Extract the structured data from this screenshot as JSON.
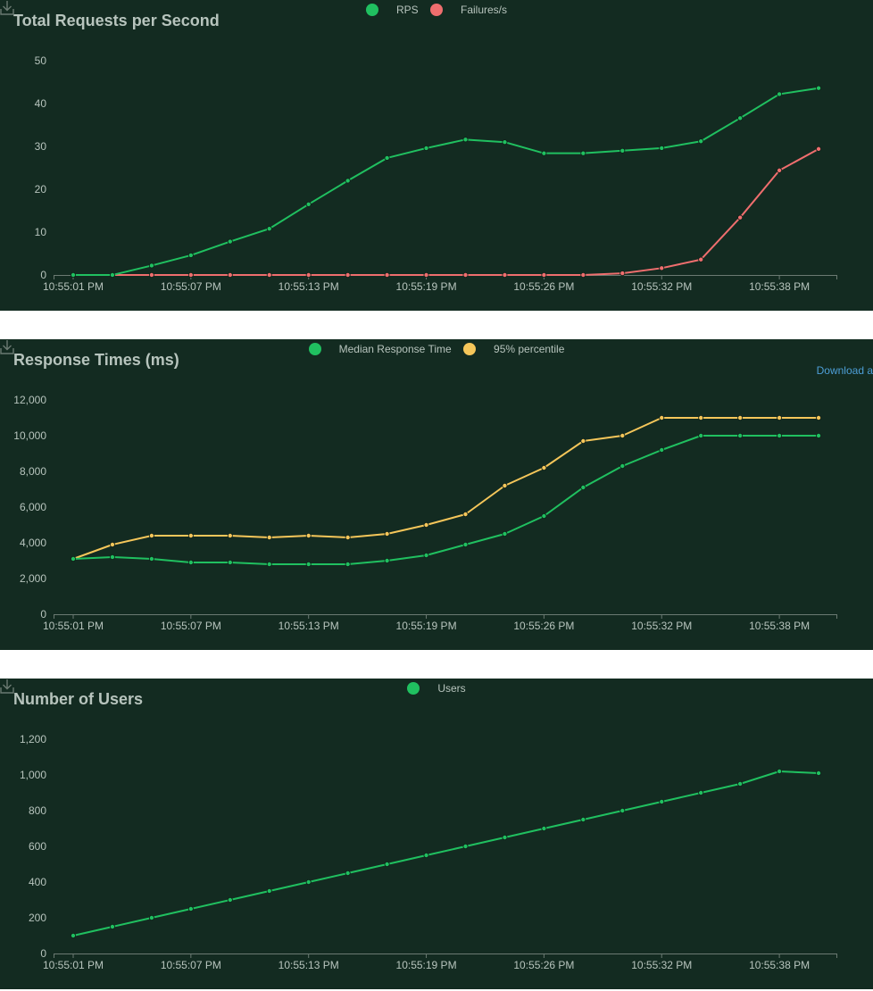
{
  "colors": {
    "background": "#132b21",
    "green": "#20c060",
    "red": "#ef6e6e",
    "yellow": "#f5c65a",
    "axis": "#6b7a72",
    "text": "#b7c4bd",
    "link": "#4d9ed7"
  },
  "chart_data": [
    {
      "type": "line",
      "title": "Total Requests per Second",
      "x": [
        "10:55:01 PM",
        "10:55:03 PM",
        "10:55:05 PM",
        "10:55:07 PM",
        "10:55:09 PM",
        "10:55:11 PM",
        "10:55:13 PM",
        "10:55:15 PM",
        "10:55:17 PM",
        "10:55:19 PM",
        "10:55:21 PM",
        "10:55:23 PM",
        "10:55:26 PM",
        "10:55:28 PM",
        "10:55:30 PM",
        "10:55:32 PM",
        "10:55:34 PM",
        "10:55:36 PM",
        "10:55:38 PM",
        "10:55:40 PM"
      ],
      "xtick_labels": [
        "10:55:01 PM",
        "10:55:07 PM",
        "10:55:13 PM",
        "10:55:19 PM",
        "10:55:26 PM",
        "10:55:32 PM",
        "10:55:38 PM"
      ],
      "ylim": [
        0,
        50
      ],
      "yticks": [
        0,
        10,
        20,
        30,
        40,
        50
      ],
      "ytick_labels": [
        "0",
        "10",
        "20",
        "30",
        "40",
        "50"
      ],
      "series": [
        {
          "name": "RPS",
          "color": "#20c060",
          "values": [
            0,
            0,
            2.2,
            4.6,
            7.8,
            10.8,
            16.5,
            22,
            27.3,
            29.6,
            31.6,
            31,
            28.4,
            28.4,
            29,
            29.6,
            31.2,
            36.6,
            42.2,
            43.6
          ]
        },
        {
          "name": "Failures/s",
          "color": "#ef6e6e",
          "values": [
            0,
            0,
            0,
            0,
            0,
            0,
            0,
            0,
            0,
            0,
            0,
            0,
            0,
            0,
            0.4,
            1.6,
            3.6,
            13.4,
            24.4,
            29.4
          ]
        }
      ]
    },
    {
      "type": "line",
      "title": "Response Times (ms)",
      "download_label": "Download a",
      "x": [
        "10:55:01 PM",
        "10:55:03 PM",
        "10:55:05 PM",
        "10:55:07 PM",
        "10:55:09 PM",
        "10:55:11 PM",
        "10:55:13 PM",
        "10:55:15 PM",
        "10:55:17 PM",
        "10:55:19 PM",
        "10:55:21 PM",
        "10:55:23 PM",
        "10:55:26 PM",
        "10:55:28 PM",
        "10:55:30 PM",
        "10:55:32 PM",
        "10:55:34 PM",
        "10:55:36 PM",
        "10:55:38 PM",
        "10:55:40 PM"
      ],
      "xtick_labels": [
        "10:55:01 PM",
        "10:55:07 PM",
        "10:55:13 PM",
        "10:55:19 PM",
        "10:55:26 PM",
        "10:55:32 PM",
        "10:55:38 PM"
      ],
      "ylim": [
        0,
        12000
      ],
      "yticks": [
        0,
        2000,
        4000,
        6000,
        8000,
        10000,
        12000
      ],
      "ytick_labels": [
        "0",
        "2,000",
        "4,000",
        "6,000",
        "8,000",
        "10,000",
        "12,000"
      ],
      "series": [
        {
          "name": "Median Response Time",
          "color": "#20c060",
          "values": [
            3100,
            3200,
            3100,
            2900,
            2900,
            2800,
            2800,
            2800,
            3000,
            3300,
            3900,
            4500,
            5500,
            7100,
            8300,
            9200,
            10000,
            10000,
            10000,
            10000
          ]
        },
        {
          "name": "95% percentile",
          "color": "#f5c65a",
          "values": [
            3100,
            3900,
            4400,
            4400,
            4400,
            4300,
            4400,
            4300,
            4500,
            5000,
            5600,
            7200,
            8200,
            9700,
            10000,
            11000,
            11000,
            11000,
            11000,
            11000
          ]
        }
      ]
    },
    {
      "type": "line",
      "title": "Number of Users",
      "x": [
        "10:55:01 PM",
        "10:55:03 PM",
        "10:55:05 PM",
        "10:55:07 PM",
        "10:55:09 PM",
        "10:55:11 PM",
        "10:55:13 PM",
        "10:55:15 PM",
        "10:55:17 PM",
        "10:55:19 PM",
        "10:55:21 PM",
        "10:55:23 PM",
        "10:55:26 PM",
        "10:55:28 PM",
        "10:55:30 PM",
        "10:55:32 PM",
        "10:55:34 PM",
        "10:55:36 PM",
        "10:55:38 PM",
        "10:55:40 PM"
      ],
      "xtick_labels": [
        "10:55:01 PM",
        "10:55:07 PM",
        "10:55:13 PM",
        "10:55:19 PM",
        "10:55:26 PM",
        "10:55:32 PM",
        "10:55:38 PM"
      ],
      "ylim": [
        0,
        1200
      ],
      "yticks": [
        0,
        200,
        400,
        600,
        800,
        1000,
        1200
      ],
      "ytick_labels": [
        "0",
        "200",
        "400",
        "600",
        "800",
        "1,000",
        "1,200"
      ],
      "series": [
        {
          "name": "Users",
          "color": "#20c060",
          "values": [
            100,
            150,
            200,
            250,
            300,
            350,
            400,
            450,
            500,
            550,
            600,
            650,
            700,
            750,
            800,
            850,
            900,
            950,
            1020,
            1010
          ]
        }
      ]
    }
  ]
}
